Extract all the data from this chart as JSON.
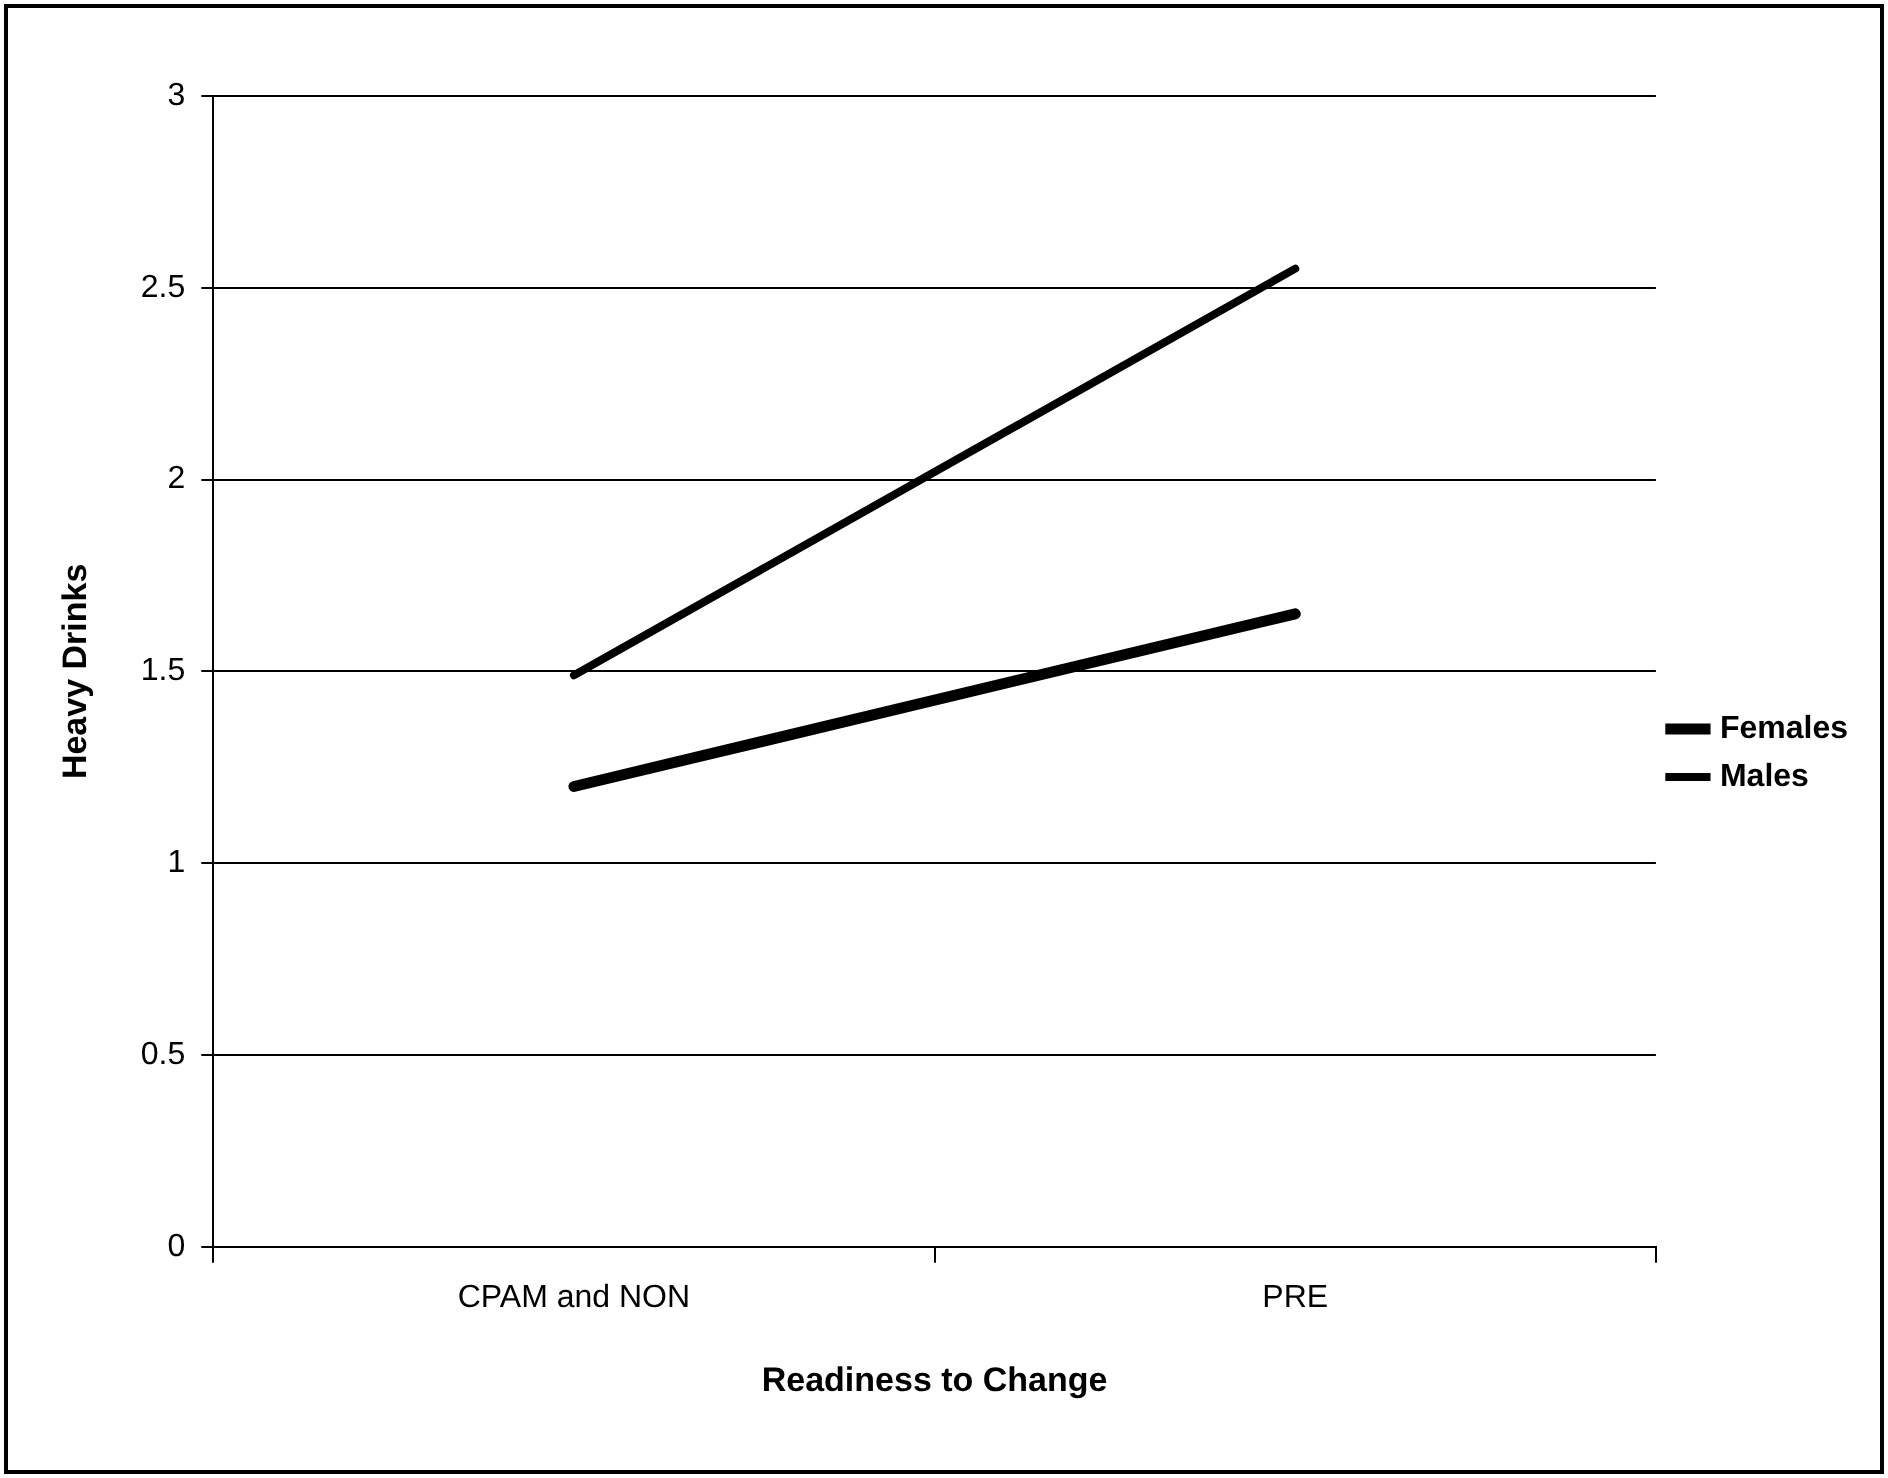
{
  "chart_data": {
    "type": "line",
    "xlabel": "Readiness to Change",
    "ylabel": "Heavy Drinks",
    "categories": [
      "CPAM and NON",
      "PRE"
    ],
    "series": [
      {
        "name": "Females",
        "color": "#000000",
        "values": [
          1.2,
          1.65
        ]
      },
      {
        "name": "Males",
        "color": "#000000",
        "values": [
          1.49,
          2.55
        ]
      }
    ],
    "ylim": [
      0,
      3
    ],
    "yticks": [
      0,
      0.5,
      1,
      1.5,
      2,
      2.5,
      3
    ],
    "grid": "y",
    "legend": "right",
    "marker": "none",
    "line_style": "solid"
  }
}
